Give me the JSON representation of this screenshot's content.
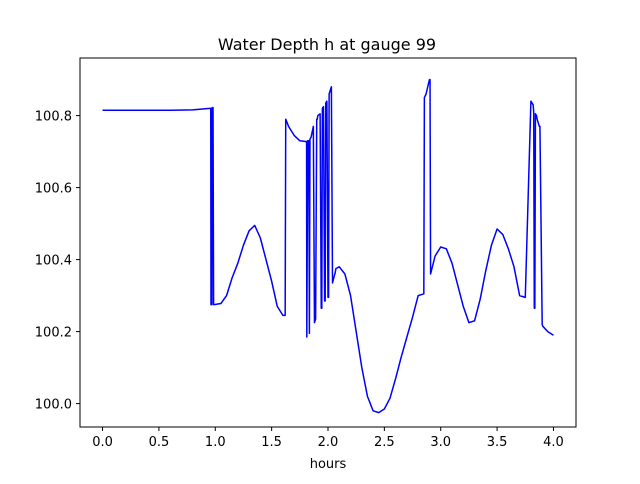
{
  "chart_data": {
    "type": "line",
    "title": "Water Depth h at gauge 99",
    "xlabel": "hours",
    "ylabel": "",
    "xlim": [
      -0.2,
      4.2
    ],
    "ylim": [
      99.935,
      100.96
    ],
    "xticks": [
      0.0,
      0.5,
      1.0,
      1.5,
      2.0,
      2.5,
      3.0,
      3.5,
      4.0
    ],
    "xtick_labels": [
      "0.0",
      "0.5",
      "1.0",
      "1.5",
      "2.0",
      "2.5",
      "3.0",
      "3.5",
      "4.0"
    ],
    "yticks": [
      100.0,
      100.2,
      100.4,
      100.6,
      100.8
    ],
    "ytick_labels": [
      "100.0",
      "100.2",
      "100.4",
      "100.6",
      "100.8"
    ],
    "grid": false,
    "legend": "none",
    "series": [
      {
        "color": "#0000ff",
        "x": [
          0.0,
          0.3,
          0.6,
          0.8,
          0.95,
          0.96,
          0.962,
          0.97,
          0.972,
          0.98,
          0.985,
          0.99,
          1.05,
          1.1,
          1.15,
          1.2,
          1.25,
          1.3,
          1.35,
          1.4,
          1.45,
          1.5,
          1.55,
          1.6,
          1.62,
          1.625,
          1.65,
          1.7,
          1.75,
          1.8,
          1.81,
          1.812,
          1.82,
          1.83,
          1.835,
          1.84,
          1.85,
          1.86,
          1.87,
          1.88,
          1.89,
          1.9,
          1.905,
          1.91,
          1.93,
          1.94,
          1.945,
          1.95,
          1.96,
          1.97,
          1.975,
          1.98,
          1.99,
          2.0,
          2.005,
          2.01,
          2.02,
          2.03,
          2.04,
          2.06,
          2.062,
          2.07,
          2.1,
          2.15,
          2.2,
          2.25,
          2.3,
          2.35,
          2.4,
          2.45,
          2.5,
          2.55,
          2.6,
          2.65,
          2.7,
          2.75,
          2.8,
          2.85,
          2.855,
          2.87,
          2.9,
          2.905,
          2.91,
          2.95,
          3.0,
          3.05,
          3.1,
          3.15,
          3.2,
          3.25,
          3.3,
          3.35,
          3.4,
          3.45,
          3.5,
          3.55,
          3.6,
          3.65,
          3.7,
          3.75,
          3.8,
          3.82,
          3.825,
          3.83,
          3.835,
          3.84,
          3.85,
          3.855,
          3.86,
          3.865,
          3.87,
          3.875,
          3.88,
          3.9,
          3.905,
          3.95,
          4.0
        ],
        "y": [
          100.815,
          100.815,
          100.815,
          100.816,
          100.82,
          100.82,
          100.275,
          100.275,
          100.822,
          100.822,
          100.275,
          100.275,
          100.278,
          100.3,
          100.35,
          100.39,
          100.44,
          100.48,
          100.495,
          100.46,
          100.4,
          100.34,
          100.27,
          100.245,
          100.245,
          100.79,
          100.77,
          100.745,
          100.73,
          100.728,
          100.728,
          100.185,
          100.73,
          100.73,
          100.195,
          100.735,
          100.74,
          100.755,
          100.77,
          100.225,
          100.235,
          100.79,
          100.79,
          100.8,
          100.805,
          100.265,
          100.265,
          100.82,
          100.825,
          100.285,
          100.285,
          100.835,
          100.84,
          100.295,
          100.295,
          100.86,
          100.87,
          100.88,
          100.335,
          100.36,
          100.36,
          100.375,
          100.38,
          100.36,
          100.3,
          100.2,
          100.1,
          100.02,
          99.98,
          99.975,
          99.985,
          100.015,
          100.07,
          100.13,
          100.185,
          100.24,
          100.3,
          100.305,
          100.85,
          100.86,
          100.9,
          100.9,
          100.36,
          100.41,
          100.435,
          100.43,
          100.39,
          100.33,
          100.27,
          100.225,
          100.23,
          100.29,
          100.37,
          100.44,
          100.485,
          100.47,
          100.43,
          100.38,
          100.3,
          100.295,
          100.84,
          100.83,
          100.81,
          100.265,
          100.265,
          100.805,
          100.8,
          100.79,
          100.785,
          100.78,
          100.775,
          100.77,
          100.77,
          100.22,
          100.215,
          100.2,
          100.19
        ]
      }
    ]
  }
}
